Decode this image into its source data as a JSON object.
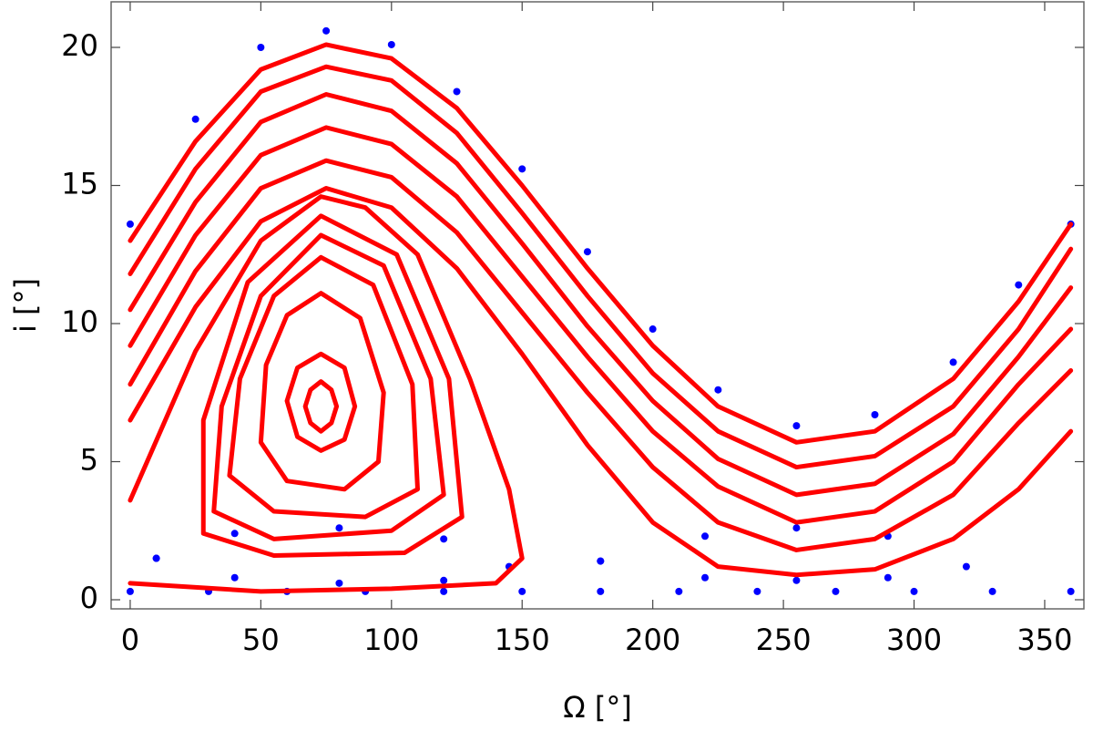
{
  "chart_data": {
    "type": "line",
    "xlabel": "Ω [°]",
    "ylabel": "i [°]",
    "xlim": [
      -7.3,
      365
    ],
    "ylim": [
      -0.33,
      21.65
    ],
    "xticks": [
      0,
      50,
      100,
      150,
      200,
      250,
      300,
      350
    ],
    "yticks": [
      0,
      5,
      10,
      15,
      20
    ],
    "series": [
      {
        "color": "#0000ff",
        "style": "dots",
        "x": [
          0,
          25,
          50,
          75,
          100,
          125,
          150,
          175,
          200,
          225,
          255,
          285,
          315,
          340,
          360
        ],
        "values": [
          13.6,
          17.4,
          20.0,
          20.6,
          20.1,
          18.4,
          15.6,
          12.6,
          9.8,
          7.6,
          6.3,
          6.7,
          8.6,
          11.4,
          13.6
        ]
      },
      {
        "color": "#0000ff",
        "style": "dots",
        "x": [
          10,
          40,
          80,
          120,
          145,
          120,
          80,
          40,
          10
        ],
        "values": [
          1.5,
          2.4,
          2.6,
          2.2,
          1.2,
          0.7,
          0.6,
          0.8,
          1.5
        ]
      },
      {
        "color": "#0000ff",
        "style": "dots",
        "x": [
          180,
          220,
          255,
          290,
          320,
          290,
          255,
          220,
          180
        ],
        "values": [
          1.4,
          2.3,
          2.6,
          2.3,
          1.2,
          0.8,
          0.7,
          0.8,
          1.4
        ]
      },
      {
        "color": "#0000ff",
        "style": "dots",
        "x": [
          0,
          30,
          60,
          90,
          120,
          150,
          180,
          210,
          240,
          270,
          300,
          330,
          360
        ],
        "values": [
          0.3,
          0.3,
          0.3,
          0.3,
          0.3,
          0.3,
          0.3,
          0.3,
          0.3,
          0.3,
          0.3,
          0.3,
          0.3
        ]
      },
      {
        "color": "#ff0000",
        "style": "line",
        "x": [
          0,
          25,
          50,
          75,
          100,
          125,
          150,
          175,
          200,
          225,
          255,
          285,
          315,
          340,
          360
        ],
        "values": [
          13.0,
          16.6,
          19.2,
          20.1,
          19.6,
          17.8,
          15.0,
          12.0,
          9.2,
          7.0,
          5.7,
          6.1,
          8.0,
          10.8,
          13.6
        ]
      },
      {
        "color": "#ff0000",
        "style": "line",
        "x": [
          0,
          25,
          50,
          75,
          100,
          125,
          150,
          175,
          200,
          225,
          255,
          285,
          315,
          340,
          360
        ],
        "values": [
          11.8,
          15.6,
          18.4,
          19.3,
          18.8,
          16.9,
          14.0,
          11.0,
          8.2,
          6.1,
          4.8,
          5.2,
          7.0,
          9.8,
          12.7
        ]
      },
      {
        "color": "#ff0000",
        "style": "line",
        "x": [
          0,
          25,
          50,
          75,
          100,
          125,
          150,
          175,
          200,
          225,
          255,
          285,
          315,
          340,
          360
        ],
        "values": [
          10.5,
          14.4,
          17.3,
          18.3,
          17.7,
          15.8,
          12.9,
          9.9,
          7.2,
          5.1,
          3.8,
          4.2,
          6.0,
          8.8,
          11.3
        ]
      },
      {
        "color": "#ff0000",
        "style": "line",
        "x": [
          0,
          25,
          50,
          75,
          100,
          125,
          150,
          175,
          200,
          225,
          255,
          285,
          315,
          340,
          360
        ],
        "values": [
          9.2,
          13.2,
          16.1,
          17.1,
          16.5,
          14.6,
          11.7,
          8.8,
          6.1,
          4.1,
          2.8,
          3.2,
          5.0,
          7.8,
          9.8
        ]
      },
      {
        "color": "#ff0000",
        "style": "line",
        "x": [
          0,
          25,
          50,
          75,
          100,
          125,
          150,
          175,
          200,
          225,
          255,
          285,
          315,
          340,
          360
        ],
        "values": [
          7.8,
          11.9,
          14.9,
          15.9,
          15.3,
          13.3,
          10.4,
          7.5,
          4.8,
          2.8,
          1.8,
          2.2,
          3.8,
          6.4,
          8.3
        ]
      },
      {
        "color": "#ff0000",
        "style": "line",
        "x": [
          0,
          25,
          50,
          75,
          100,
          125,
          150,
          175,
          200,
          225,
          255,
          285,
          315,
          340,
          360
        ],
        "values": [
          6.5,
          10.6,
          13.7,
          14.9,
          14.2,
          12.0,
          8.9,
          5.6,
          2.8,
          1.2,
          0.9,
          1.1,
          2.2,
          4.0,
          6.1
        ]
      },
      {
        "color": "#ff0000",
        "style": "line",
        "x": [
          0,
          50,
          100,
          140,
          150,
          145,
          130,
          110,
          90,
          73,
          50,
          25,
          0
        ],
        "values": [
          0.6,
          0.3,
          0.4,
          0.6,
          1.5,
          4.0,
          8.0,
          12.5,
          14.2,
          14.6,
          13.0,
          9.0,
          3.6
        ]
      },
      {
        "color": "#ff0000",
        "style": "line",
        "x": [
          73,
          102,
          122,
          127,
          105,
          55,
          28,
          28,
          45,
          73
        ],
        "values": [
          13.9,
          12.5,
          8.0,
          3.0,
          1.7,
          1.6,
          2.4,
          6.5,
          11.5,
          13.9
        ]
      },
      {
        "color": "#ff0000",
        "style": "line",
        "x": [
          73,
          97,
          115,
          120,
          100,
          55,
          32,
          35,
          50,
          73
        ],
        "values": [
          13.2,
          12.1,
          8.0,
          3.8,
          2.5,
          2.2,
          3.2,
          7.0,
          11.0,
          13.2
        ]
      },
      {
        "color": "#ff0000",
        "style": "line",
        "x": [
          73,
          93,
          108,
          110,
          90,
          55,
          38,
          42,
          55,
          73
        ],
        "values": [
          12.4,
          11.4,
          7.8,
          4.0,
          3.0,
          3.2,
          4.5,
          8.0,
          11.0,
          12.4
        ]
      },
      {
        "color": "#ff0000",
        "style": "line",
        "x": [
          73,
          88,
          97,
          95,
          82,
          60,
          50,
          52,
          60,
          73
        ],
        "values": [
          11.1,
          10.2,
          7.5,
          5.0,
          4.0,
          4.3,
          5.7,
          8.5,
          10.3,
          11.1
        ]
      },
      {
        "color": "#ff0000",
        "style": "line",
        "x": [
          73,
          82,
          86,
          82,
          73,
          64,
          60,
          64,
          73
        ],
        "values": [
          8.9,
          8.4,
          7.0,
          5.8,
          5.4,
          5.9,
          7.2,
          8.4,
          8.9
        ]
      },
      {
        "color": "#ff0000",
        "style": "line",
        "x": [
          73,
          77,
          79,
          77,
          73,
          69,
          67,
          69,
          73
        ],
        "values": [
          7.9,
          7.6,
          7.0,
          6.4,
          6.1,
          6.4,
          7.0,
          7.6,
          7.9
        ]
      }
    ]
  }
}
